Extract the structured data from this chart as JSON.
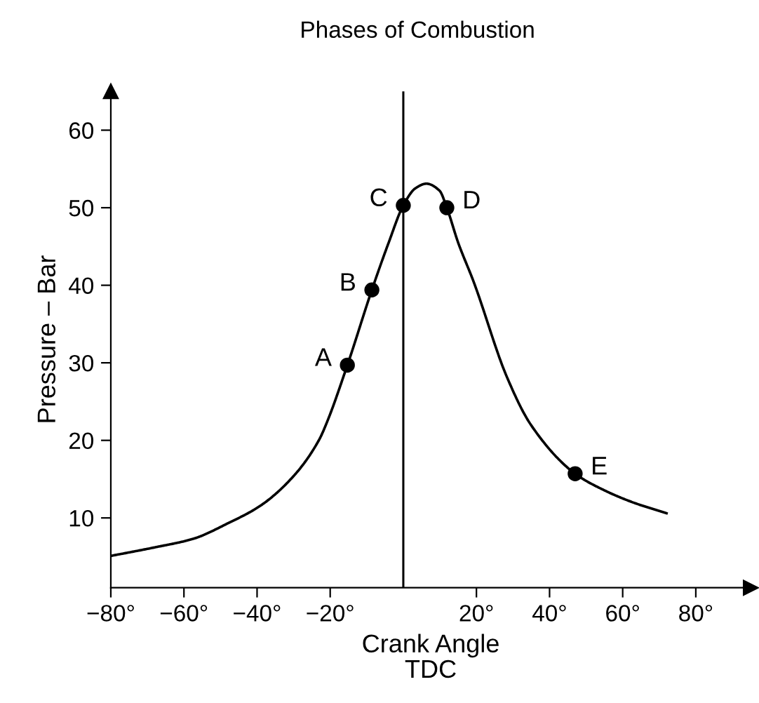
{
  "chart_data": {
    "type": "line",
    "title": "Phases of Combustion",
    "xlabel": "Crank Angle\nTDC",
    "ylabel": "Pressure – Bar",
    "series": [
      {
        "color": "#000000",
        "x": [
          -80,
          -68,
          -57.5,
          -48,
          -39,
          -30,
          -23,
          -21,
          -15.3,
          -8.6,
          -4,
          0,
          3.3,
          6.3,
          9.9,
          11.9,
          15,
          19.2,
          28.4,
          34.9,
          47,
          54.8,
          62.8,
          72
        ],
        "values": [
          5.1,
          6.2,
          7.3,
          9.3,
          11.6,
          15.4,
          20.1,
          22.2,
          29.7,
          39.4,
          45.5,
          50.3,
          52.5,
          53.1,
          52.2,
          50.0,
          45.5,
          40.5,
          28.1,
          22.0,
          15.7,
          13.6,
          12.0,
          10.6
        ]
      },
      {
        "type": "scatter",
        "color": "#000000",
        "marker": "circle",
        "x": [
          -15.3,
          -8.6,
          0,
          11.9,
          47
        ],
        "values": [
          29.7,
          39.4,
          50.3,
          50.0,
          15.7
        ]
      }
    ],
    "annotations": [
      {
        "text": "A",
        "x": -15.3,
        "y": 29.7
      },
      {
        "text": "B",
        "x": -8.6,
        "y": 39.4
      },
      {
        "text": "C",
        "x": 0,
        "y": 50.3
      },
      {
        "text": "D",
        "x": 11.9,
        "y": 50.0
      },
      {
        "text": "E",
        "x": 47,
        "y": 15.7
      }
    ],
    "ref_lines": [
      {
        "axis": "x",
        "value": 0,
        "color": "#000000"
      }
    ],
    "xlim": [
      -80,
      95
    ],
    "ylim": [
      1,
      65
    ],
    "xticks": [
      {
        "value": -80,
        "label": "−80°"
      },
      {
        "value": -60,
        "label": "−60°"
      },
      {
        "value": -40,
        "label": "−40°"
      },
      {
        "value": -20,
        "label": "−20°"
      },
      {
        "value": 20,
        "label": "20°"
      },
      {
        "value": 40,
        "label": "40°"
      },
      {
        "value": 60,
        "label": "60°"
      },
      {
        "value": 80,
        "label": "80°"
      }
    ],
    "yticks": [
      10,
      20,
      30,
      40,
      50,
      60
    ],
    "grid": false
  }
}
